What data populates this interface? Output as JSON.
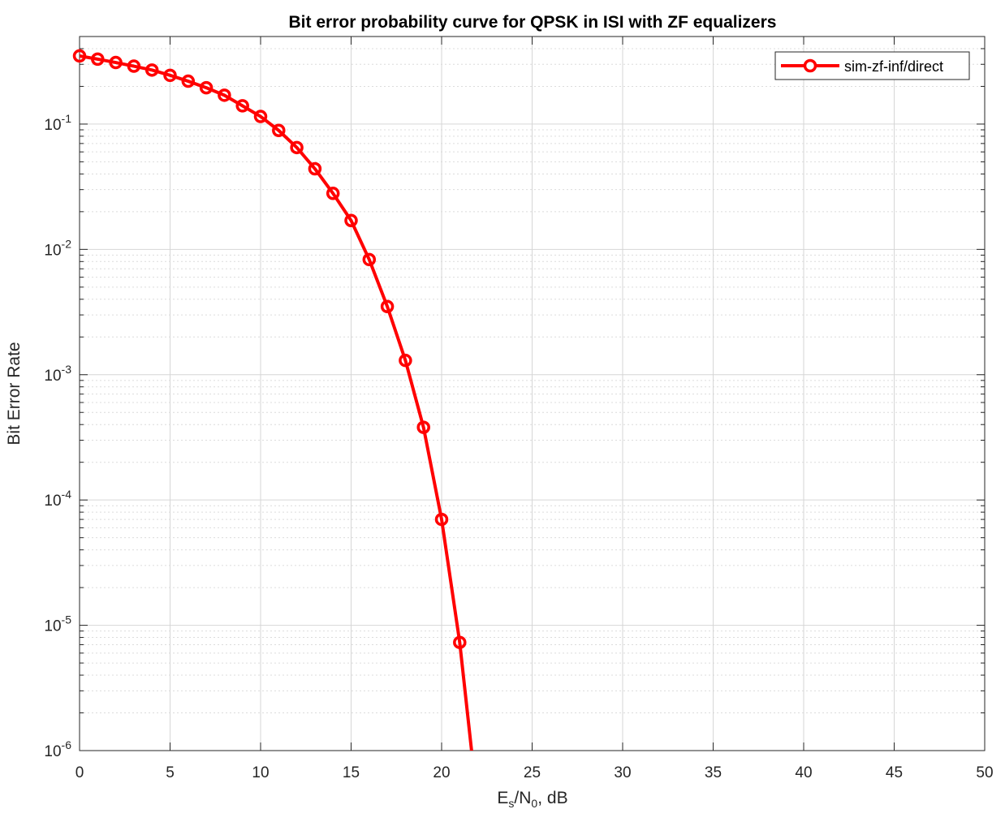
{
  "chart_data": {
    "type": "line",
    "title": "Bit error probability curve for QPSK in ISI with ZF equalizers",
    "xlabel": {
      "main": "E",
      "sub": "s",
      "mid": "/N",
      "sub2": "0",
      "unit": ",  dB"
    },
    "ylabel": "Bit Error Rate",
    "xlim": [
      0,
      50
    ],
    "ylim": [
      1e-06,
      0.5
    ],
    "yscale": "log",
    "grid": true,
    "legend_position": "top-right",
    "xticks": [
      0,
      5,
      10,
      15,
      20,
      25,
      30,
      35,
      40,
      45,
      50
    ],
    "xtick_labels": [
      "0",
      "5",
      "10",
      "15",
      "20",
      "25",
      "30",
      "35",
      "40",
      "45",
      "50"
    ],
    "yticks": [
      {
        "value": 1e-06,
        "base": "10",
        "exp": "-6"
      },
      {
        "value": 1e-05,
        "base": "10",
        "exp": "-5"
      },
      {
        "value": 0.0001,
        "base": "10",
        "exp": "-4"
      },
      {
        "value": 0.001,
        "base": "10",
        "exp": "-3"
      },
      {
        "value": 0.01,
        "base": "10",
        "exp": "-2"
      },
      {
        "value": 0.1,
        "base": "10",
        "exp": "-1"
      }
    ],
    "series": [
      {
        "name": "sim-zf-inf/direct",
        "color": "#ff0000",
        "marker": "circle",
        "x": [
          0,
          1,
          2,
          3,
          4,
          5,
          6,
          7,
          8,
          9,
          10,
          11,
          12,
          13,
          14,
          15,
          16,
          17,
          18,
          19,
          20,
          21,
          22
        ],
        "y": [
          0.35,
          0.33,
          0.31,
          0.29,
          0.27,
          0.245,
          0.22,
          0.195,
          0.17,
          0.14,
          0.115,
          0.089,
          0.065,
          0.044,
          0.028,
          0.017,
          0.0083,
          0.0035,
          0.0013,
          0.00038,
          7e-05,
          7.3e-06,
          3.5e-07
        ],
        "marker_points": 22
      }
    ]
  }
}
